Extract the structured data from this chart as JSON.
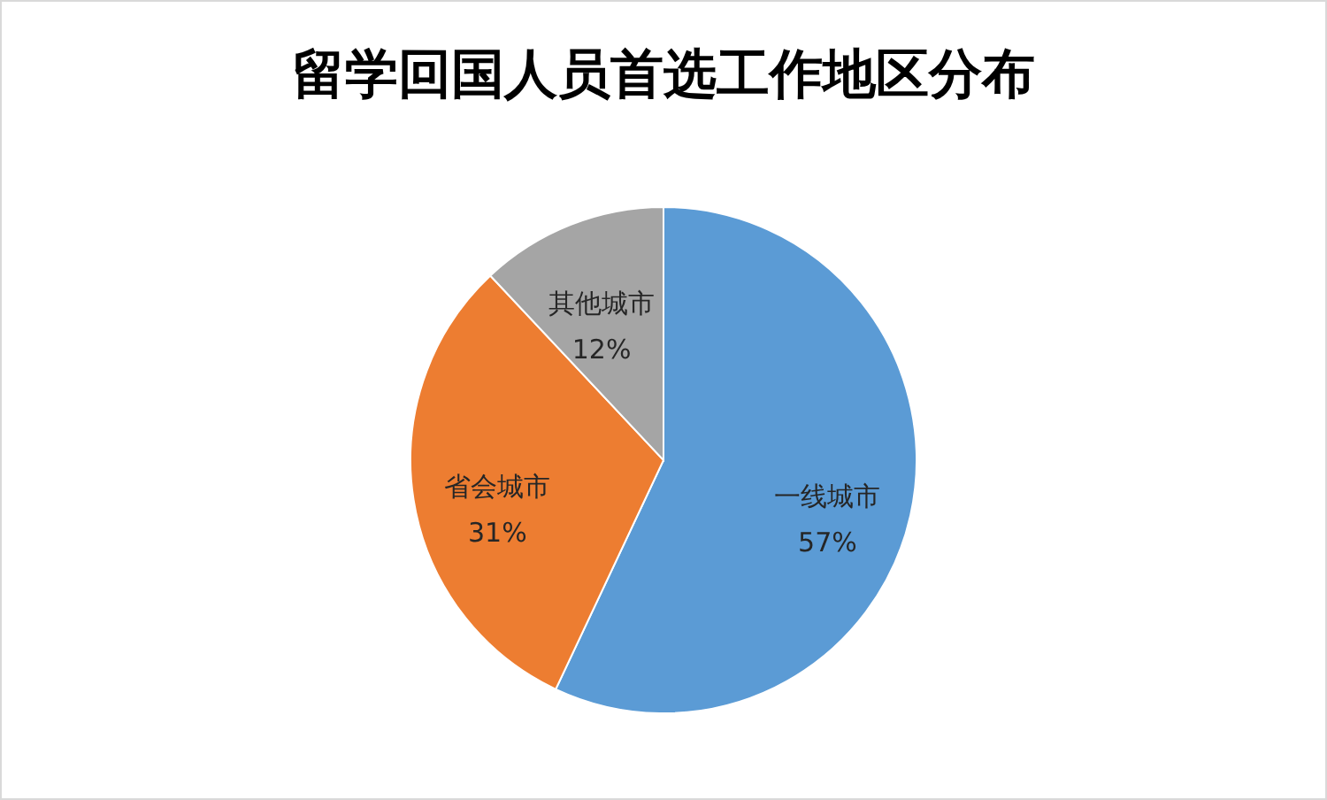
{
  "chart_data": {
    "type": "pie",
    "title": "留学回国人员首选工作地区分布",
    "categories": [
      "一线城市",
      "省会城市",
      "其他城市"
    ],
    "values": [
      57,
      31,
      12
    ],
    "colors": [
      "#5b9bd5",
      "#ed7d31",
      "#a5a5a5"
    ],
    "value_labels": [
      "57%",
      "31%",
      "12%"
    ],
    "legend": false
  }
}
